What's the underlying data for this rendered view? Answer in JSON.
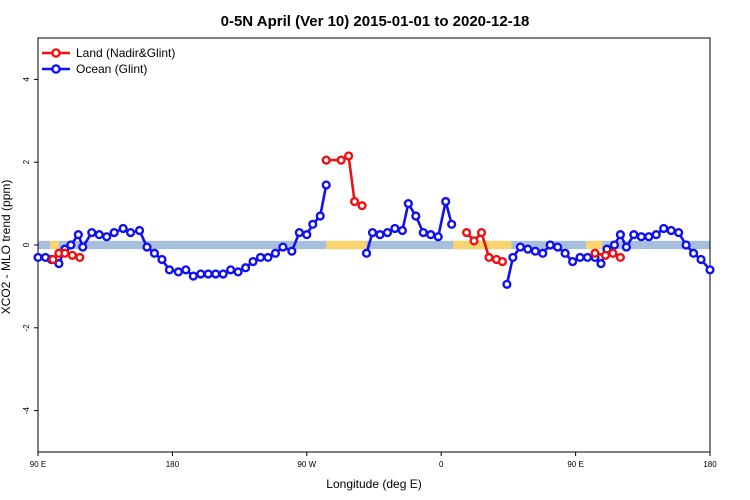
{
  "chart_data": {
    "type": "line",
    "title": "0-5N April (Ver 10)   2015-01-01 to 2020-12-18",
    "xlabel": "Longitude (deg E)",
    "ylabel": "XCO2 - MLO trend (ppm)",
    "x_ticks": [
      {
        "value": 0,
        "label": "90 E"
      },
      {
        "value": 90,
        "label": "180"
      },
      {
        "value": 180,
        "label": "90 W"
      },
      {
        "value": 270,
        "label": "0"
      },
      {
        "value": 360,
        "label": "90 E"
      },
      {
        "value": 450,
        "label": "180"
      }
    ],
    "y_ticks": [
      -4,
      -2,
      0,
      2,
      4
    ],
    "xlim": [
      0,
      450
    ],
    "ylim": [
      -5,
      5
    ],
    "colors": {
      "land": "#ee1111",
      "ocean": "#1111ee",
      "ocean_band": "#a8bedd",
      "land_band": "#f9d46f",
      "axis": "#000000"
    },
    "band": {
      "y_range": [
        -0.1,
        0.1
      ],
      "land_segments": [
        [
          8,
          14
        ],
        [
          193,
          220
        ],
        [
          278,
          317
        ],
        [
          367,
          378
        ]
      ]
    },
    "legend": [
      {
        "name": "Land (Nadir&Glint)",
        "color": "#ee1111"
      },
      {
        "name": "Ocean (Glint)",
        "color": "#1111ee"
      }
    ],
    "series": [
      {
        "name": "Land (Nadir&Glint)",
        "color": "#ee1111",
        "segments": [
          [
            [
              10,
              -0.35
            ],
            [
              14,
              -0.2
            ],
            [
              18,
              -0.2
            ],
            [
              23,
              -0.25
            ],
            [
              28,
              -0.3
            ]
          ],
          [
            [
              193,
              2.05
            ],
            [
              203,
              2.05
            ],
            [
              208,
              2.15
            ],
            [
              212,
              1.05
            ],
            [
              217,
              0.95
            ]
          ],
          [
            [
              287,
              0.3
            ],
            [
              292,
              0.1
            ],
            [
              297,
              0.3
            ],
            [
              302,
              -0.3
            ],
            [
              307,
              -0.35
            ],
            [
              311,
              -0.4
            ]
          ],
          [
            [
              373,
              -0.2
            ],
            [
              380,
              -0.25
            ],
            [
              385,
              -0.2
            ],
            [
              390,
              -0.3
            ]
          ]
        ]
      },
      {
        "name": "Ocean (Glint)",
        "color": "#1111ee",
        "segments": [
          [
            [
              0,
              -0.3
            ],
            [
              5,
              -0.3
            ],
            [
              9,
              -0.35
            ],
            [
              14,
              -0.45
            ],
            [
              18,
              -0.1
            ],
            [
              22,
              0.0
            ],
            [
              27,
              0.25
            ],
            [
              30,
              -0.05
            ],
            [
              36,
              0.3
            ],
            [
              41,
              0.25
            ],
            [
              46,
              0.2
            ],
            [
              51,
              0.3
            ],
            [
              57,
              0.4
            ],
            [
              62,
              0.3
            ],
            [
              68,
              0.35
            ],
            [
              73,
              -0.05
            ],
            [
              78,
              -0.2
            ],
            [
              83,
              -0.35
            ],
            [
              88,
              -0.6
            ],
            [
              94,
              -0.65
            ],
            [
              99,
              -0.6
            ],
            [
              104,
              -0.75
            ],
            [
              109,
              -0.7
            ],
            [
              114,
              -0.7
            ],
            [
              119,
              -0.7
            ],
            [
              124,
              -0.7
            ],
            [
              129,
              -0.6
            ],
            [
              134,
              -0.65
            ],
            [
              139,
              -0.55
            ],
            [
              144,
              -0.4
            ],
            [
              149,
              -0.3
            ],
            [
              154,
              -0.3
            ],
            [
              159,
              -0.2
            ],
            [
              164,
              -0.05
            ],
            [
              170,
              -0.15
            ],
            [
              175,
              0.3
            ],
            [
              180,
              0.25
            ],
            [
              184,
              0.5
            ],
            [
              189,
              0.7
            ],
            [
              193,
              1.45
            ]
          ],
          [
            [
              220,
              -0.2
            ],
            [
              224,
              0.3
            ],
            [
              229,
              0.25
            ],
            [
              234,
              0.3
            ],
            [
              239,
              0.4
            ],
            [
              244,
              0.35
            ],
            [
              248,
              1.0
            ],
            [
              253,
              0.7
            ],
            [
              258,
              0.3
            ],
            [
              263,
              0.25
            ],
            [
              268,
              0.2
            ],
            [
              273,
              1.05
            ],
            [
              277,
              0.5
            ]
          ],
          [
            [
              314,
              -0.95
            ],
            [
              318,
              -0.3
            ],
            [
              323,
              -0.05
            ],
            [
              328,
              -0.1
            ],
            [
              333,
              -0.15
            ],
            [
              338,
              -0.2
            ],
            [
              343,
              0.0
            ],
            [
              348,
              -0.05
            ],
            [
              353,
              -0.2
            ],
            [
              358,
              -0.4
            ],
            [
              363,
              -0.3
            ],
            [
              368,
              -0.3
            ],
            [
              373,
              -0.3
            ],
            [
              377,
              -0.45
            ],
            [
              381,
              -0.1
            ],
            [
              386,
              0.0
            ],
            [
              390,
              0.25
            ],
            [
              394,
              -0.05
            ],
            [
              399,
              0.25
            ],
            [
              404,
              0.2
            ],
            [
              409,
              0.2
            ],
            [
              414,
              0.25
            ],
            [
              419,
              0.4
            ],
            [
              424,
              0.35
            ],
            [
              429,
              0.3
            ],
            [
              434,
              0.0
            ],
            [
              439,
              -0.2
            ],
            [
              444,
              -0.35
            ],
            [
              450,
              -0.6
            ]
          ]
        ]
      }
    ]
  }
}
